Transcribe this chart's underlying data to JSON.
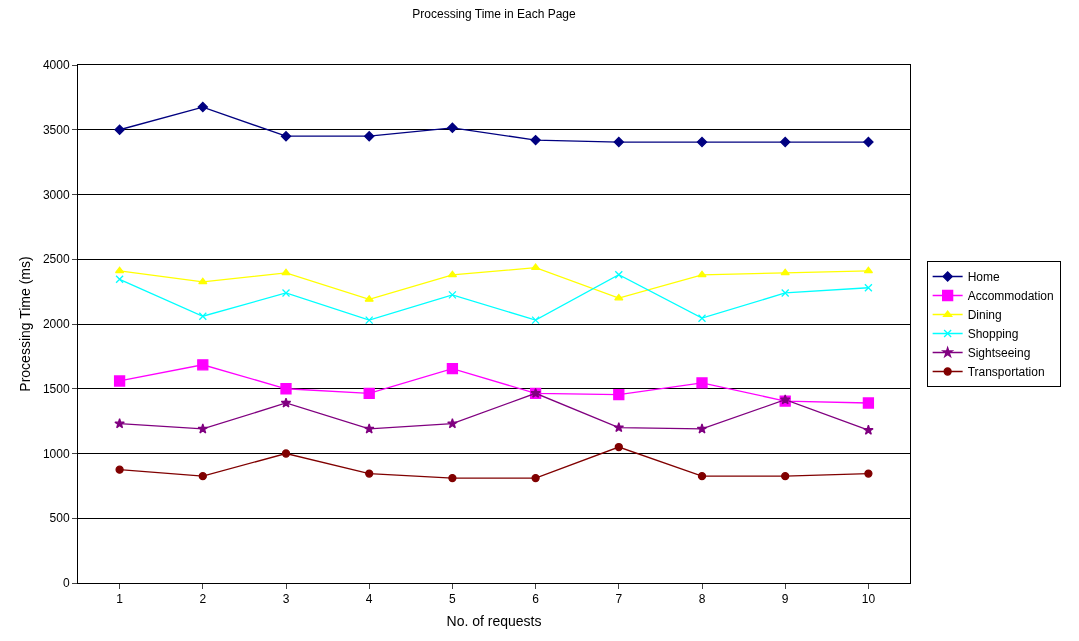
{
  "chart_data": {
    "type": "line",
    "title": "Processing Time in Each Page",
    "xlabel": "No. of requests",
    "ylabel": "Processing Time (ms)",
    "categories": [
      "1",
      "2",
      "3",
      "4",
      "5",
      "6",
      "7",
      "8",
      "9",
      "10"
    ],
    "ylim": [
      0,
      4000
    ],
    "yticks": [
      0,
      500,
      1000,
      1500,
      2000,
      2500,
      3000,
      3500,
      4000
    ],
    "grid": "y",
    "legend": "right",
    "line_style": "solid",
    "series": [
      {
        "name": "Home",
        "color": "#000080",
        "marker": "diamond",
        "values": [
          3500,
          3675,
          3450,
          3450,
          3515,
          3420,
          3405,
          3405,
          3405,
          3405
        ]
      },
      {
        "name": "Accommodation",
        "color": "#ff00ff",
        "marker": "square",
        "values": [
          1560,
          1685,
          1500,
          1465,
          1655,
          1465,
          1455,
          1545,
          1405,
          1390
        ]
      },
      {
        "name": "Dining",
        "color": "#ffff00",
        "marker": "triangle",
        "values": [
          2410,
          2325,
          2395,
          2190,
          2380,
          2435,
          2200,
          2380,
          2395,
          2410
        ]
      },
      {
        "name": "Shopping",
        "color": "#00ffff",
        "marker": "cross",
        "values": [
          2345,
          2060,
          2240,
          2030,
          2225,
          2030,
          2380,
          2045,
          2240,
          2280
        ]
      },
      {
        "name": "Sightseeing",
        "color": "#800080",
        "marker": "star",
        "values": [
          1230,
          1190,
          1390,
          1190,
          1230,
          1465,
          1200,
          1190,
          1415,
          1180
        ]
      },
      {
        "name": "Transportation",
        "color": "#800000",
        "marker": "circle",
        "values": [
          875,
          825,
          1000,
          845,
          810,
          810,
          1050,
          825,
          825,
          845
        ]
      }
    ]
  }
}
